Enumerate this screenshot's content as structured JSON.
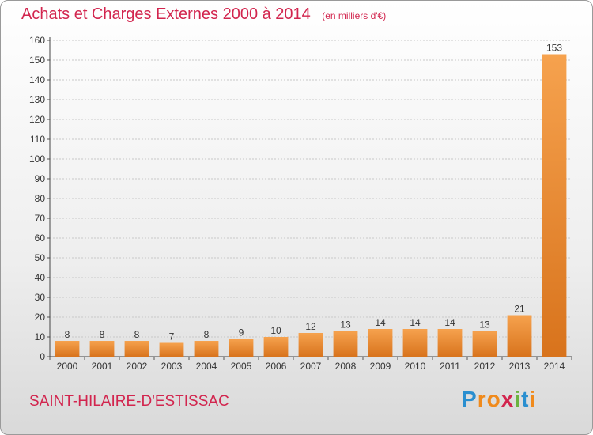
{
  "title": "Achats et Charges Externes 2000 à 2014",
  "unit_note": "(en milliers d'€)",
  "commune": "SAINT-HILAIRE-D'ESTISSAC",
  "logo": {
    "text": "Proxiti",
    "letters": [
      "P",
      "r",
      "o",
      "x",
      "i",
      "t",
      "i"
    ],
    "colors": [
      "#2a8fd0",
      "#f08a1c",
      "#f08a1c",
      "#d2254e",
      "#6cb33f",
      "#2a8fd0",
      "#f08a1c"
    ]
  },
  "colors": {
    "title": "#d2254e",
    "bar_light": "#f6a24e",
    "bar_dark": "#d8731c",
    "grid": "#c8c8c8"
  },
  "chart_data": {
    "type": "bar",
    "categories": [
      "2000",
      "2001",
      "2002",
      "2003",
      "2004",
      "2005",
      "2006",
      "2007",
      "2008",
      "2009",
      "2010",
      "2011",
      "2012",
      "2013",
      "2014"
    ],
    "values": [
      8,
      8,
      8,
      7,
      8,
      9,
      10,
      12,
      13,
      14,
      14,
      14,
      13,
      21,
      153
    ],
    "data_labels": [
      "8",
      "8",
      "8",
      "7",
      "8",
      "9",
      "10",
      "12",
      "13",
      "14",
      "14",
      "14",
      "13",
      "21",
      "153"
    ],
    "title": "Achats et Charges Externes 2000 à 2014",
    "xlabel": "",
    "ylabel": "",
    "ylim": [
      0,
      160
    ],
    "yticks": [
      0,
      10,
      20,
      30,
      40,
      50,
      60,
      70,
      80,
      90,
      100,
      110,
      120,
      130,
      140,
      150,
      160
    ],
    "grid": true,
    "legend": "none"
  }
}
